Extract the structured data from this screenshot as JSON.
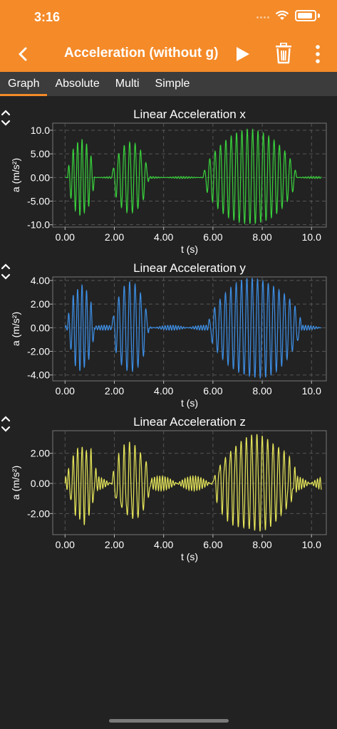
{
  "status": {
    "time": "3:16"
  },
  "toolbar": {
    "title": "Acceleration (without g)"
  },
  "tabs": [
    "Graph",
    "Absolute",
    "Multi",
    "Simple"
  ],
  "active_tab": 0,
  "colors": {
    "header": "#f48a28",
    "x": "#39d23c",
    "y": "#3d8fe6",
    "z": "#e6e65a",
    "background": "#222222"
  },
  "graphs": [
    {
      "title": "Linear Acceleration x",
      "xlabel": "t (s)",
      "ylabel": "a (m/s²)",
      "xticks": [
        "0.00",
        "2.00",
        "4.00",
        "6.00",
        "8.00",
        "10.0"
      ],
      "yticks": [
        "10.0",
        "5.00",
        "0.00",
        "-5.00",
        "-10.0"
      ]
    },
    {
      "title": "Linear Acceleration y",
      "xlabel": "t (s)",
      "ylabel": "a (m/s²)",
      "xticks": [
        "0.00",
        "2.00",
        "4.00",
        "6.00",
        "8.00",
        "10.0"
      ],
      "yticks": [
        "4.00",
        "2.00",
        "0.00",
        "-2.00",
        "-4.00"
      ]
    },
    {
      "title": "Linear Acceleration z",
      "xlabel": "t (s)",
      "ylabel": "a (m/s²)",
      "xticks": [
        "0.00",
        "2.00",
        "4.00",
        "6.00",
        "8.00",
        "10.0"
      ],
      "yticks": [
        "2.00",
        "0.00",
        "-2.00"
      ]
    }
  ],
  "chart_data": [
    {
      "type": "line",
      "title": "Linear Acceleration x",
      "xlabel": "t (s)",
      "ylabel": "a (m/s²)",
      "xlim": [
        -0.5,
        10.6
      ],
      "ylim": [
        -10.5,
        11.5
      ],
      "grid": true,
      "color": "#39d23c",
      "bursts": [
        {
          "start": 0.1,
          "end": 1.2,
          "amp": 8,
          "freq": 5.5
        },
        {
          "start": 1.9,
          "end": 3.4,
          "amp": 7.5,
          "freq": 4.5
        },
        {
          "start": 5.6,
          "end": 9.4,
          "amp": 10,
          "freq": 4.6
        }
      ]
    },
    {
      "type": "line",
      "title": "Linear Acceleration y",
      "xlabel": "t (s)",
      "ylabel": "a (m/s²)",
      "xlim": [
        -0.5,
        10.6
      ],
      "ylim": [
        -4.5,
        4.3
      ],
      "grid": true,
      "color": "#3d8fe6",
      "bursts": [
        {
          "start": 0.1,
          "end": 1.2,
          "amp": 3.6,
          "freq": 5.5
        },
        {
          "start": 1.9,
          "end": 3.4,
          "amp": 3.8,
          "freq": 4.5
        },
        {
          "start": 5.8,
          "end": 9.6,
          "amp": 4.2,
          "freq": 4.6
        }
      ]
    },
    {
      "type": "line",
      "title": "Linear Acceleration z",
      "xlabel": "t (s)",
      "ylabel": "a (m/s²)",
      "xlim": [
        -0.5,
        10.6
      ],
      "ylim": [
        -3.4,
        3.5
      ],
      "grid": true,
      "color": "#e6e65a",
      "bursts": [
        {
          "start": 0.1,
          "end": 1.3,
          "amp": 2.5,
          "freq": 5.5
        },
        {
          "start": 1.9,
          "end": 3.5,
          "amp": 2.4,
          "freq": 4.5
        },
        {
          "start": 6.0,
          "end": 9.4,
          "amp": 3.1,
          "freq": 4.6
        }
      ]
    }
  ]
}
